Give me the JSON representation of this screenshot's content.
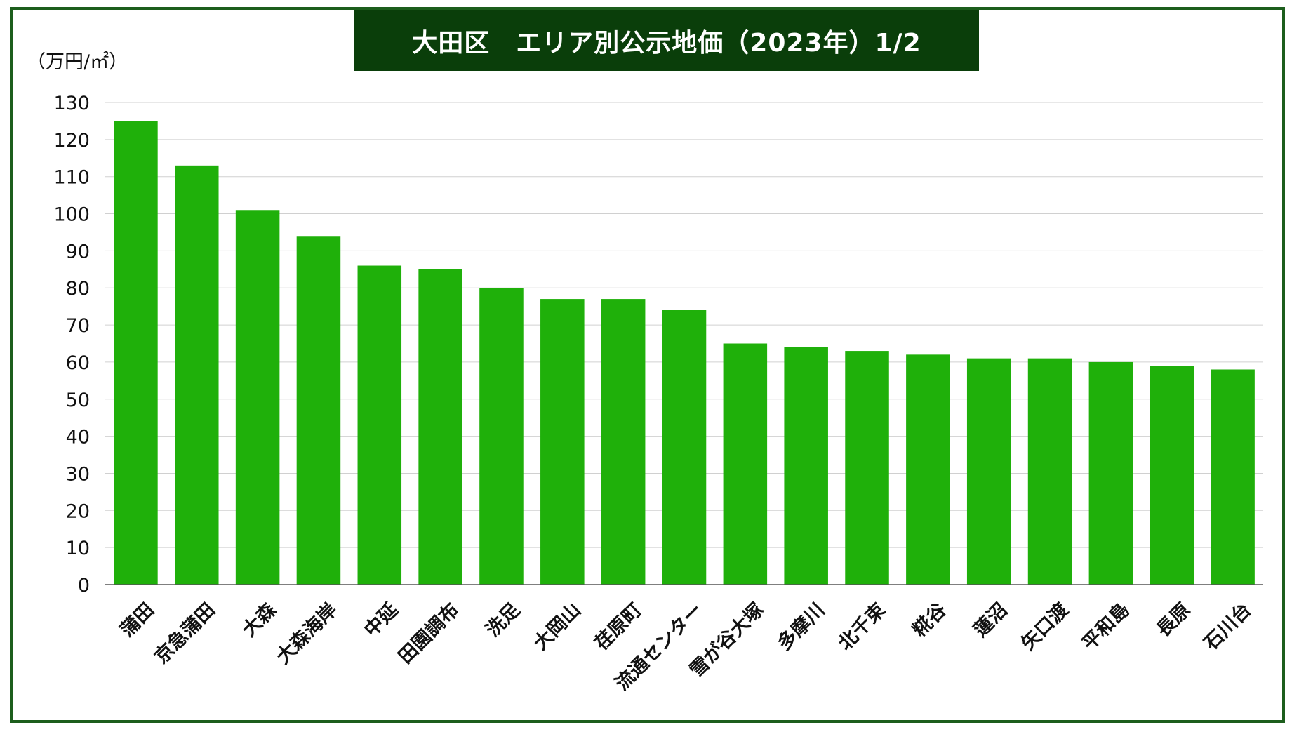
{
  "chart_data": {
    "type": "bar",
    "title": "大田区　エリア別公示地価（2023年）1/2",
    "ylabel": "（万円/㎡）",
    "xlabel": "",
    "ylim": [
      0,
      130
    ],
    "ytick_step": 10,
    "grid": true,
    "bar_color": "#1fb00a",
    "title_bg_color": "#0a3e0a",
    "frame_color": "#1d5e1d",
    "categories": [
      "蒲田",
      "京急蒲田",
      "大森",
      "大森海岸",
      "中延",
      "田園調布",
      "洗足",
      "大岡山",
      "荏原町",
      "流通センター",
      "雪が谷大塚",
      "多摩川",
      "北千束",
      "糀谷",
      "蓮沼",
      "矢口渡",
      "平和島",
      "長原",
      "石川台"
    ],
    "values": [
      125,
      113,
      101,
      94,
      86,
      85,
      80,
      77,
      77,
      74,
      65,
      64,
      63,
      62,
      61,
      61,
      60,
      59,
      58
    ]
  }
}
